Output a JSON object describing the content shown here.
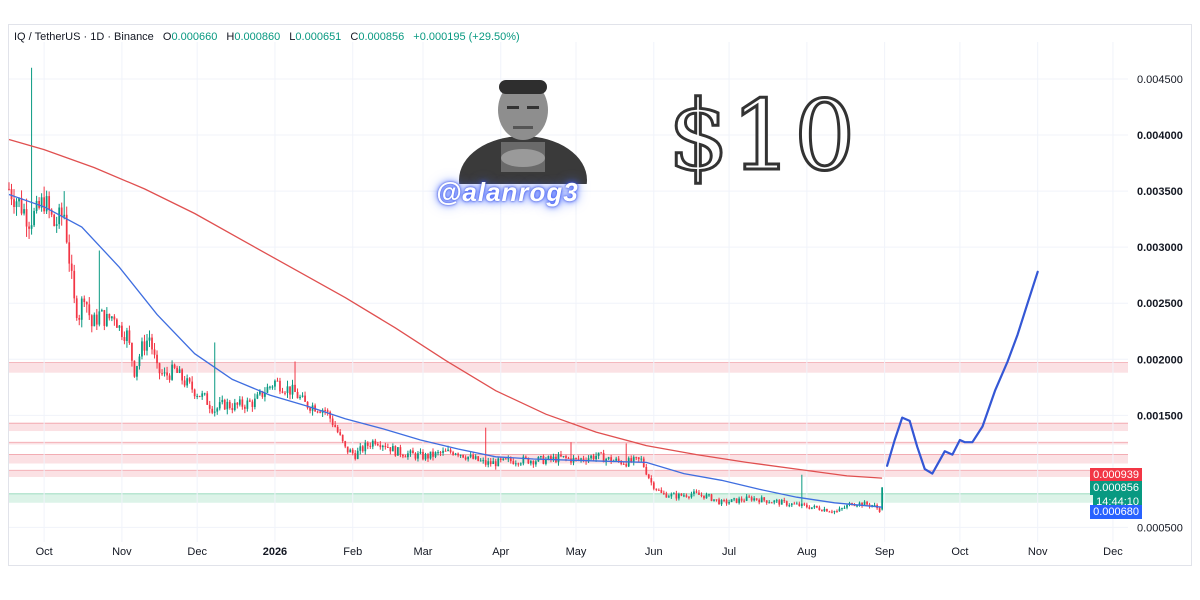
{
  "header": {
    "symbol": "IQ / TetherUS · 1D · Binance",
    "o_label": "O",
    "o_value": "0.000660",
    "h_label": "H",
    "h_value": "0.000860",
    "l_label": "L",
    "l_value": "0.000651",
    "c_label": "C",
    "c_value": "0.000856",
    "change": "+0.000195 (+29.50%)"
  },
  "overlay": {
    "handle": "@alanrog3",
    "big_text": "$10"
  },
  "price_tags": {
    "ma_red": "0.000939",
    "last": "0.000856",
    "countdown": "14:44:10",
    "ma_blue": "0.000680"
  },
  "colors": {
    "up": "#089981",
    "down": "#f23645",
    "ma_long": "#e05050",
    "ma_short": "#3f6ee0",
    "tag_red": "#f23645",
    "tag_green": "#089981",
    "tag_blue": "#2962ff",
    "zone_red": "#f8c9cd",
    "zone_green": "#bfe9d6"
  },
  "chart_data": {
    "type": "candlestick",
    "y_axis": {
      "ticks": [
        "0.004500",
        "0.004000",
        "0.003500",
        "0.003000",
        "0.002500",
        "0.002000",
        "0.001500",
        "0.000500"
      ],
      "tick_values": [
        0.0045,
        0.004,
        0.0035,
        0.003,
        0.0025,
        0.002,
        0.0015,
        0.0005
      ],
      "ylim": [
        0.00037,
        0.00483
      ],
      "position": "right"
    },
    "x_axis": {
      "labels": [
        "Oct",
        "Nov",
        "Dec",
        "2026",
        "Feb",
        "Mar",
        "Apr",
        "May",
        "Jun",
        "Jul",
        "Aug",
        "Sep",
        "Oct",
        "Nov",
        "Dec"
      ],
      "label_days": [
        0,
        31,
        61,
        92,
        123,
        151,
        182,
        212,
        243,
        273,
        304,
        335,
        365,
        396,
        426
      ],
      "xlim_days": [
        -14,
        432
      ]
    },
    "price_path": [
      [
        -14,
        0.00352
      ],
      [
        -10,
        0.0034
      ],
      [
        -6,
        0.00325
      ],
      [
        -3,
        0.0033
      ],
      [
        0,
        0.00342
      ],
      [
        4,
        0.0032
      ],
      [
        8,
        0.0033
      ],
      [
        10,
        0.0029
      ],
      [
        12,
        0.0025
      ],
      [
        14,
        0.0024
      ],
      [
        16,
        0.0026
      ],
      [
        19,
        0.0023
      ],
      [
        22,
        0.0024
      ],
      [
        25,
        0.00235
      ],
      [
        28,
        0.0024
      ],
      [
        30,
        0.00228
      ],
      [
        33,
        0.00222
      ],
      [
        36,
        0.0019
      ],
      [
        39,
        0.0021
      ],
      [
        42,
        0.0022
      ],
      [
        45,
        0.0019
      ],
      [
        48,
        0.00185
      ],
      [
        52,
        0.0019
      ],
      [
        56,
        0.0018
      ],
      [
        60,
        0.00172
      ],
      [
        64,
        0.00165
      ],
      [
        68,
        0.00155
      ],
      [
        72,
        0.0016
      ],
      [
        76,
        0.00158
      ],
      [
        80,
        0.0016
      ],
      [
        84,
        0.00162
      ],
      [
        88,
        0.00172
      ],
      [
        92,
        0.0018
      ],
      [
        96,
        0.00175
      ],
      [
        100,
        0.0017
      ],
      [
        104,
        0.0016
      ],
      [
        108,
        0.00158
      ],
      [
        112,
        0.00155
      ],
      [
        116,
        0.0014
      ],
      [
        120,
        0.0012
      ],
      [
        124,
        0.00115
      ],
      [
        128,
        0.00122
      ],
      [
        132,
        0.00128
      ],
      [
        136,
        0.00124
      ],
      [
        140,
        0.00118
      ],
      [
        146,
        0.00115
      ],
      [
        152,
        0.00113
      ],
      [
        158,
        0.00116
      ],
      [
        164,
        0.00118
      ],
      [
        170,
        0.00112
      ],
      [
        176,
        0.00107
      ],
      [
        182,
        0.00108
      ],
      [
        188,
        0.0011
      ],
      [
        194,
        0.0011
      ],
      [
        200,
        0.0011
      ],
      [
        206,
        0.00112
      ],
      [
        212,
        0.0011
      ],
      [
        220,
        0.00114
      ],
      [
        226,
        0.0011
      ],
      [
        232,
        0.00108
      ],
      [
        238,
        0.0011
      ],
      [
        242,
        0.0009
      ],
      [
        246,
        0.0008
      ],
      [
        252,
        0.00078
      ],
      [
        258,
        0.0008
      ],
      [
        264,
        0.00078
      ],
      [
        270,
        0.00072
      ],
      [
        276,
        0.00074
      ],
      [
        282,
        0.00076
      ],
      [
        288,
        0.00074
      ],
      [
        294,
        0.00072
      ],
      [
        300,
        0.0007
      ],
      [
        306,
        0.00068
      ],
      [
        312,
        0.00066
      ],
      [
        316,
        0.00064
      ],
      [
        320,
        0.00069
      ],
      [
        322,
        0.00072
      ],
      [
        326,
        0.00071
      ],
      [
        330,
        0.0007
      ],
      [
        333,
        0.00066
      ],
      [
        334,
        0.000856
      ]
    ],
    "ma_short": [
      [
        -14,
        0.00347
      ],
      [
        0,
        0.00336
      ],
      [
        15,
        0.00318
      ],
      [
        30,
        0.00282
      ],
      [
        45,
        0.0024
      ],
      [
        60,
        0.00205
      ],
      [
        75,
        0.00182
      ],
      [
        90,
        0.00168
      ],
      [
        105,
        0.00158
      ],
      [
        120,
        0.00147
      ],
      [
        135,
        0.00138
      ],
      [
        150,
        0.00128
      ],
      [
        165,
        0.0012
      ],
      [
        180,
        0.00113
      ],
      [
        195,
        0.00111
      ],
      [
        210,
        0.0011
      ],
      [
        225,
        0.00109
      ],
      [
        240,
        0.00108
      ],
      [
        255,
        0.00098
      ],
      [
        270,
        0.00092
      ],
      [
        285,
        0.00084
      ],
      [
        300,
        0.00077
      ],
      [
        315,
        0.00072
      ],
      [
        334,
        0.00068
      ]
    ],
    "ma_long": [
      [
        -14,
        0.00396
      ],
      [
        0,
        0.00387
      ],
      [
        20,
        0.00371
      ],
      [
        40,
        0.00352
      ],
      [
        60,
        0.0033
      ],
      [
        80,
        0.00305
      ],
      [
        100,
        0.0028
      ],
      [
        120,
        0.00255
      ],
      [
        140,
        0.00228
      ],
      [
        160,
        0.00199
      ],
      [
        180,
        0.00172
      ],
      [
        200,
        0.00151
      ],
      [
        220,
        0.00135
      ],
      [
        240,
        0.00123
      ],
      [
        260,
        0.00115
      ],
      [
        280,
        0.00108
      ],
      [
        300,
        0.00102
      ],
      [
        320,
        0.00096
      ],
      [
        334,
        0.00094
      ]
    ],
    "projection": [
      [
        336,
        0.00105
      ],
      [
        339,
        0.00128
      ],
      [
        342,
        0.00148
      ],
      [
        345,
        0.00145
      ],
      [
        348,
        0.00122
      ],
      [
        351,
        0.00102
      ],
      [
        354,
        0.00098
      ],
      [
        357,
        0.0011
      ],
      [
        359,
        0.00118
      ],
      [
        362,
        0.00115
      ],
      [
        365,
        0.00128
      ],
      [
        367,
        0.00126
      ],
      [
        370,
        0.00126
      ],
      [
        374,
        0.0014
      ],
      [
        379,
        0.00172
      ],
      [
        384,
        0.00198
      ],
      [
        388,
        0.00222
      ],
      [
        392,
        0.0025
      ],
      [
        396,
        0.00278
      ]
    ],
    "spikes": [
      [
        -5,
        0.0046
      ],
      [
        8,
        0.0035
      ],
      [
        22,
        0.00297
      ],
      [
        68,
        0.00215
      ],
      [
        100,
        0.00198
      ],
      [
        176,
        0.00139
      ],
      [
        210,
        0.00126
      ],
      [
        232,
        0.00125
      ],
      [
        302,
        0.00097
      ],
      [
        335,
        0.00092
      ]
    ],
    "zones": [
      {
        "low": 0.00188,
        "high": 0.00197,
        "color": "red"
      },
      {
        "low": 0.00136,
        "high": 0.00143,
        "color": "red"
      },
      {
        "low": 0.00124,
        "high": 0.00126,
        "color": "red"
      },
      {
        "low": 0.00107,
        "high": 0.00115,
        "color": "red"
      },
      {
        "low": 0.00095,
        "high": 0.00101,
        "color": "red"
      },
      {
        "low": 0.00072,
        "high": 0.0008,
        "color": "green"
      }
    ],
    "tag_values": {
      "ma_red": 0.000939,
      "last": 0.000856,
      "ma_blue": 0.00068
    }
  }
}
